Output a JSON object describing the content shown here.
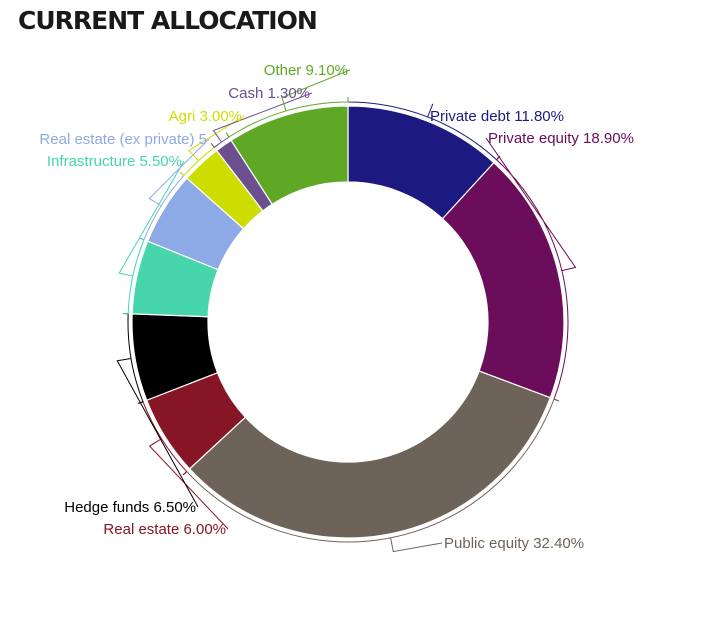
{
  "title": "CURRENT ALLOCATION",
  "chart_data": {
    "type": "pie",
    "variant": "donut",
    "title": "CURRENT ALLOCATION",
    "unit": "%",
    "start": "12 o'clock, clockwise",
    "slices": [
      {
        "label": "Private debt",
        "value": 11.8,
        "display": "Private debt 11.80%",
        "color": "#1c1a80"
      },
      {
        "label": "Private equity",
        "value": 18.9,
        "display": "Private equity 18.90%",
        "color": "#6b0d5a"
      },
      {
        "label": "Public equity",
        "value": 32.4,
        "display": "Public equity 32.40%",
        "color": "#6e6358"
      },
      {
        "label": "Real estate",
        "value": 6.0,
        "display": "Real estate 6.00%",
        "color": "#861626"
      },
      {
        "label": "Hedge funds",
        "value": 6.5,
        "display": "Hedge funds 6.50%",
        "color": "#000000"
      },
      {
        "label": "Infrastructure",
        "value": 5.5,
        "display": "Infrastructure 5.50%",
        "color": "#47d6ac"
      },
      {
        "label": "Real estate (ex private)",
        "value": 5.5,
        "display": "Real estate (ex private) 5",
        "color": "#8eaae6"
      },
      {
        "label": "Agri",
        "value": 3.0,
        "display": "Agri 3.00%",
        "color": "#cedd00"
      },
      {
        "label": "Cash",
        "value": 1.3,
        "display": "Cash 1.30%",
        "color": "#6b4f8e"
      },
      {
        "label": "Other",
        "value": 9.1,
        "display": "Other 9.10%",
        "color": "#5fa825"
      }
    ]
  }
}
